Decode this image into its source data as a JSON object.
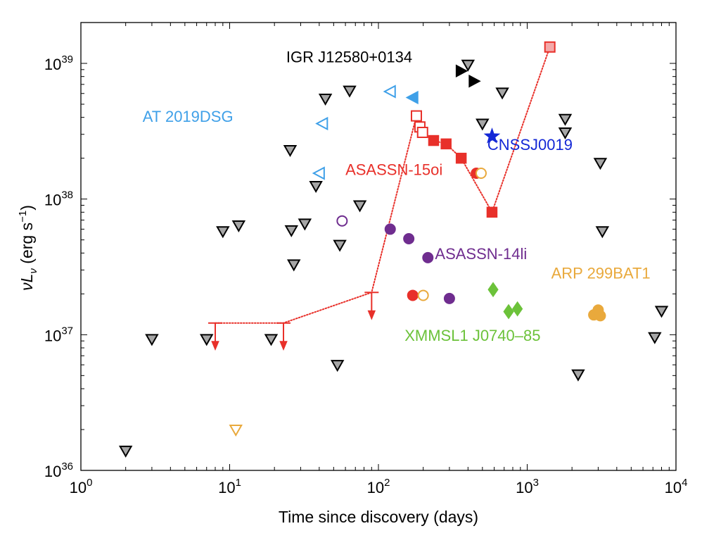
{
  "chart_data": {
    "type": "scatter",
    "xlabel": "Time since discovery (days)",
    "ylabel_main": "νL",
    "ylabel_sub": "ν",
    "ylabel_units": " (erg s",
    "ylabel_exp": "−1",
    "ylabel_close": ")",
    "x_scale": "log",
    "y_scale": "log",
    "xlim": [
      1,
      10000
    ],
    "ylim": [
      1e+36,
      2e+39
    ],
    "grid": false,
    "x_ticks": [
      {
        "value": 1,
        "base": "10",
        "exp": "0"
      },
      {
        "value": 10,
        "base": "10",
        "exp": "1"
      },
      {
        "value": 100,
        "base": "10",
        "exp": "2"
      },
      {
        "value": 1000,
        "base": "10",
        "exp": "3"
      },
      {
        "value": 10000,
        "base": "10",
        "exp": "4"
      }
    ],
    "y_ticks": [
      {
        "value": 1e+36,
        "base": "10",
        "exp": "36"
      },
      {
        "value": 1e+37,
        "base": "10",
        "exp": "37"
      },
      {
        "value": 1e+38,
        "base": "10",
        "exp": "38"
      },
      {
        "value": 1e+39,
        "base": "10",
        "exp": "39"
      }
    ],
    "colors": {
      "gray_fill": "#a6a6a6",
      "black": "#000000",
      "red": "#e8302a",
      "purple": "#6f2d8f",
      "orange": "#e9a93c",
      "green": "#6cc23a",
      "light_blue": "#3fa0e8",
      "blue": "#1428d6"
    },
    "annotations": [
      {
        "text": "IGR J12580+0134",
        "color": "#000000",
        "x": 24,
        "y": 1.02e+39
      },
      {
        "text": "AT 2019DSG",
        "color": "#3fa0e8",
        "x": 2.6,
        "y": 3.7e+38
      },
      {
        "text": "ASASSN-15oi",
        "color": "#e8302a",
        "x": 60,
        "y": 1.5e+38
      },
      {
        "text": "CNSSJ0019",
        "color": "#1428d6",
        "x": 540,
        "y": 2.3e+38
      },
      {
        "text": "ASASSN-14li",
        "color": "#6f2d8f",
        "x": 240,
        "y": 3.6e+37
      },
      {
        "text": "ARP 299BAT1",
        "color": "#e9a93c",
        "x": 1450,
        "y": 2.6e+37
      },
      {
        "text": "XMMSL1 J0740–85",
        "color": "#6cc23a",
        "x": 150,
        "y": 9e+36
      }
    ],
    "series": [
      {
        "marker": "triangle-down",
        "fill": "#a6a6a6",
        "stroke": "#000000",
        "points": [
          [
            2,
            1.4e+36
          ],
          [
            3,
            9.3e+36
          ],
          [
            7,
            9.3e+36
          ],
          [
            9,
            5.8e+37
          ],
          [
            11.5,
            6.4e+37
          ],
          [
            19,
            9.3e+36
          ],
          [
            25.5,
            2.3e+38
          ],
          [
            26,
            5.9e+37
          ],
          [
            27,
            3.3e+37
          ],
          [
            32,
            6.6e+37
          ],
          [
            38,
            1.25e+38
          ],
          [
            44,
            5.5e+38
          ],
          [
            53,
            6e+36
          ],
          [
            55,
            4.6e+37
          ],
          [
            64,
            6.3e+38
          ],
          [
            75,
            9e+37
          ],
          [
            400,
            9.8e+38
          ],
          [
            500,
            3.6e+38
          ],
          [
            680,
            6.1e+38
          ],
          [
            1800,
            3.9e+38
          ],
          [
            1800,
            3.1e+38
          ],
          [
            2200,
            5.1e+36
          ],
          [
            3100,
            1.85e+38
          ],
          [
            3200,
            5.8e+37
          ],
          [
            7200,
            9.6e+36
          ],
          [
            8000,
            1.5e+37
          ]
        ]
      },
      {
        "marker": "triangle-right",
        "fill": "#000000",
        "stroke": "#000000",
        "points": [
          [
            360,
            8.8e+38
          ],
          [
            440,
            7.4e+38
          ]
        ]
      },
      {
        "marker": "triangle-left",
        "fill": "none",
        "stroke": "#3fa0e8",
        "points": [
          [
            120,
            6.2e+38
          ],
          [
            42,
            3.6e+38
          ],
          [
            40,
            1.55e+38
          ]
        ]
      },
      {
        "marker": "triangle-left",
        "fill": "#3fa0e8",
        "stroke": "#3fa0e8",
        "points": [
          [
            170,
            5.6e+38
          ]
        ]
      },
      {
        "marker": "star",
        "fill": "#1428d6",
        "stroke": "#1428d6",
        "points": [
          [
            580,
            2.9e+38
          ]
        ]
      },
      {
        "marker": "square",
        "fill": "#e8302a",
        "stroke": "#e8302a",
        "points": [
          [
            235,
            2.7e+38
          ],
          [
            285,
            2.55e+38
          ],
          [
            360,
            2e+38
          ],
          [
            580,
            8e+37
          ]
        ]
      },
      {
        "marker": "square-open",
        "fill": "none",
        "stroke": "#e8302a",
        "points": [
          [
            180,
            4.1e+38
          ],
          [
            190,
            3.4e+38
          ],
          [
            198,
            3.1e+38
          ]
        ]
      },
      {
        "marker": "square-open-dot",
        "fill": "#f4a9a9",
        "stroke": "#e8302a",
        "points": [
          [
            1420,
            1.32e+39
          ]
        ]
      },
      {
        "marker": "upper-limit",
        "fill": "none",
        "stroke": "#e8302a",
        "points": [
          [
            8,
            1.22e+37
          ],
          [
            23,
            1.22e+37
          ],
          [
            90,
            2.05e+37
          ]
        ]
      },
      {
        "marker": "circle",
        "fill": "#e8302a",
        "stroke": "#e8302a",
        "points": [
          [
            455,
            1.55e+38
          ],
          [
            170,
            1.95e+37
          ]
        ]
      },
      {
        "marker": "circle-open",
        "fill": "none",
        "stroke": "#e9a93c",
        "points": [
          [
            490,
            1.55e+38
          ],
          [
            200,
            1.95e+37
          ]
        ]
      },
      {
        "marker": "triangle-down-open",
        "fill": "none",
        "stroke": "#e9a93c",
        "points": [
          [
            11,
            2e+36
          ]
        ]
      },
      {
        "marker": "circle",
        "fill": "#e9a93c",
        "stroke": "#e9a93c",
        "points": [
          [
            2800,
            1.4e+37
          ],
          [
            3000,
            1.52e+37
          ],
          [
            3100,
            1.38e+37
          ]
        ]
      },
      {
        "marker": "circle-open",
        "fill": "none",
        "stroke": "#6f2d8f",
        "points": [
          [
            57,
            6.9e+37
          ]
        ]
      },
      {
        "marker": "circle",
        "fill": "#6f2d8f",
        "stroke": "#6f2d8f",
        "points": [
          [
            120,
            6e+37
          ],
          [
            160,
            5.1e+37
          ],
          [
            215,
            3.7e+37
          ],
          [
            300,
            1.85e+37
          ]
        ]
      },
      {
        "marker": "diamond",
        "fill": "#6cc23a",
        "stroke": "#6cc23a",
        "points": [
          [
            590,
            2.15e+37
          ],
          [
            750,
            1.48e+37
          ],
          [
            860,
            1.55e+37
          ]
        ]
      }
    ],
    "lines": [
      {
        "style": "dotted",
        "color": "#e8302a",
        "points": [
          [
            8,
            1.22e+37
          ],
          [
            23,
            1.22e+37
          ],
          [
            90,
            2.05e+37
          ],
          [
            180,
            4.1e+38
          ],
          [
            190,
            3.4e+38
          ],
          [
            198,
            3.1e+38
          ],
          [
            235,
            2.7e+38
          ],
          [
            285,
            2.55e+38
          ],
          [
            360,
            2e+38
          ],
          [
            580,
            8e+37
          ],
          [
            1420,
            1.32e+39
          ]
        ]
      }
    ]
  }
}
